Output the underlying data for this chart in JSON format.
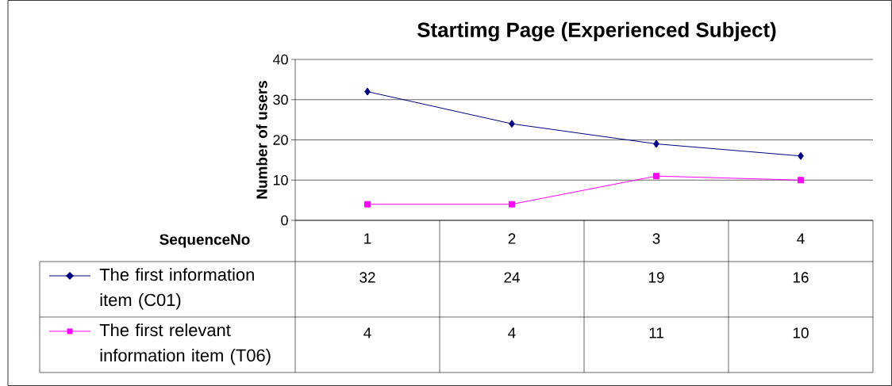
{
  "chart_data": {
    "type": "line",
    "title": "Startimg Page (Experienced Subject)",
    "xlabel": "SequenceNo",
    "ylabel": "Number of users",
    "categories": [
      "1",
      "2",
      "3",
      "4"
    ],
    "series": [
      {
        "name": "The first information item (C01)",
        "color": "#000080",
        "marker": "diamond",
        "values": [
          32,
          24,
          19,
          16
        ]
      },
      {
        "name": "The first relevant information item (T06)",
        "color": "#ff00ff",
        "marker": "square",
        "values": [
          4,
          4,
          11,
          10
        ]
      }
    ],
    "ylim": [
      0,
      40
    ],
    "yticks": [
      0,
      10,
      20,
      30,
      40
    ],
    "grid": "y",
    "legend": "bottom left",
    "data_labels": true
  }
}
